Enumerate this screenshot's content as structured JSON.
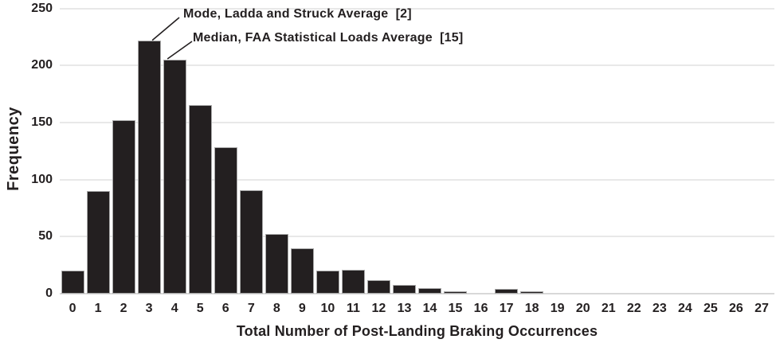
{
  "chart_data": {
    "type": "bar",
    "title": "",
    "xlabel": "Total Number of Post-Landing Braking Occurrences",
    "ylabel": "Frequency",
    "categories": [
      "0",
      "1",
      "2",
      "3",
      "4",
      "5",
      "6",
      "7",
      "8",
      "9",
      "10",
      "11",
      "12",
      "13",
      "14",
      "15",
      "16",
      "17",
      "18",
      "19",
      "20",
      "21",
      "22",
      "23",
      "24",
      "25",
      "26",
      "27"
    ],
    "values": [
      20,
      90,
      152,
      222,
      205,
      165,
      128,
      91,
      52,
      40,
      20,
      21,
      12,
      8,
      5,
      2,
      0,
      4,
      2,
      0,
      0,
      0,
      0,
      0,
      0,
      0,
      0,
      0
    ],
    "ylim": [
      0,
      250
    ],
    "yticks": [
      0,
      50,
      100,
      150,
      200,
      250
    ],
    "grid": "horizontal",
    "legend": "none",
    "annotations": [
      {
        "text": "Mode, Ladda and Struck Average  [2]",
        "points_to_category": "3",
        "points_to_value": 222
      },
      {
        "text": "Median, FAA Statistical Loads Average  [15]",
        "points_to_category": "4",
        "points_to_value": 205
      }
    ]
  },
  "colors": {
    "bar": "#231f20",
    "bar_border": "#a9a9a9",
    "gridline": "#e8e8e8",
    "axis_line": "#d8d8d8",
    "text": "#231f20",
    "background": "#ffffff"
  }
}
